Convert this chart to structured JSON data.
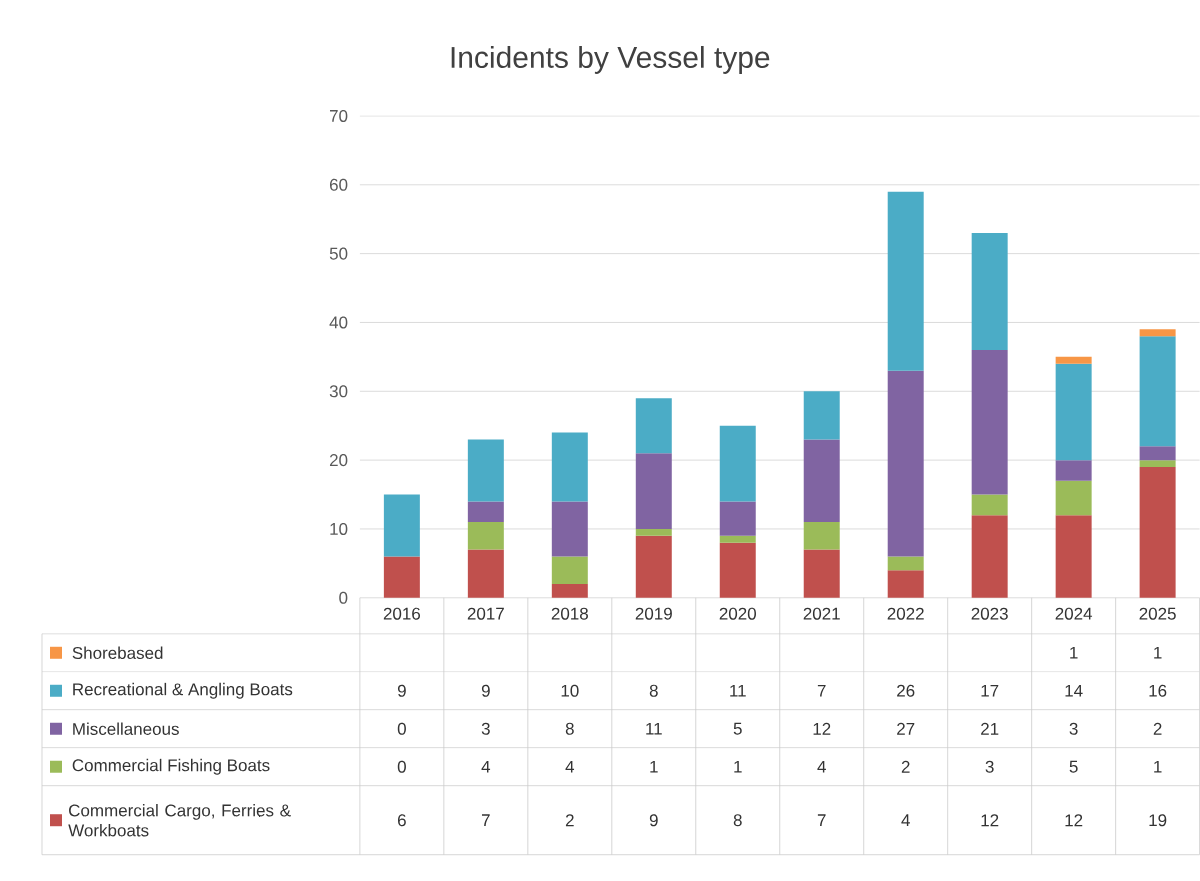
{
  "chart_data": {
    "type": "bar",
    "title": "Incidents by Vessel type",
    "categories": [
      "2016",
      "2017",
      "2018",
      "2019",
      "2020",
      "2021",
      "2022",
      "2023",
      "2024",
      "2025"
    ],
    "stacked": true,
    "grid": "y",
    "legend": "bottom",
    "data_labels": true,
    "ylim": [
      0,
      70
    ],
    "yticks": [
      0,
      10,
      20,
      30,
      40,
      50,
      60,
      70
    ],
    "series": [
      {
        "name": "Commercial Cargo, Ferries & Workboats",
        "color": "#c0504d",
        "values": [
          6,
          7,
          2,
          9,
          8,
          7,
          4,
          12,
          12,
          19
        ]
      },
      {
        "name": "Commercial Fishing Boats",
        "color": "#9bbb59",
        "values": [
          0,
          4,
          4,
          1,
          1,
          4,
          2,
          3,
          5,
          1
        ]
      },
      {
        "name": "Miscellaneous",
        "color": "#8064a2",
        "values": [
          0,
          3,
          8,
          11,
          5,
          12,
          27,
          21,
          3,
          2
        ]
      },
      {
        "name": "Recreational & Angling Boats",
        "color": "#4bacc6",
        "values": [
          9,
          9,
          10,
          8,
          11,
          7,
          26,
          17,
          14,
          16
        ]
      },
      {
        "name": "Shorebased",
        "color": "#f79646",
        "values": [
          null,
          null,
          null,
          null,
          null,
          null,
          null,
          null,
          1,
          1
        ]
      }
    ]
  }
}
